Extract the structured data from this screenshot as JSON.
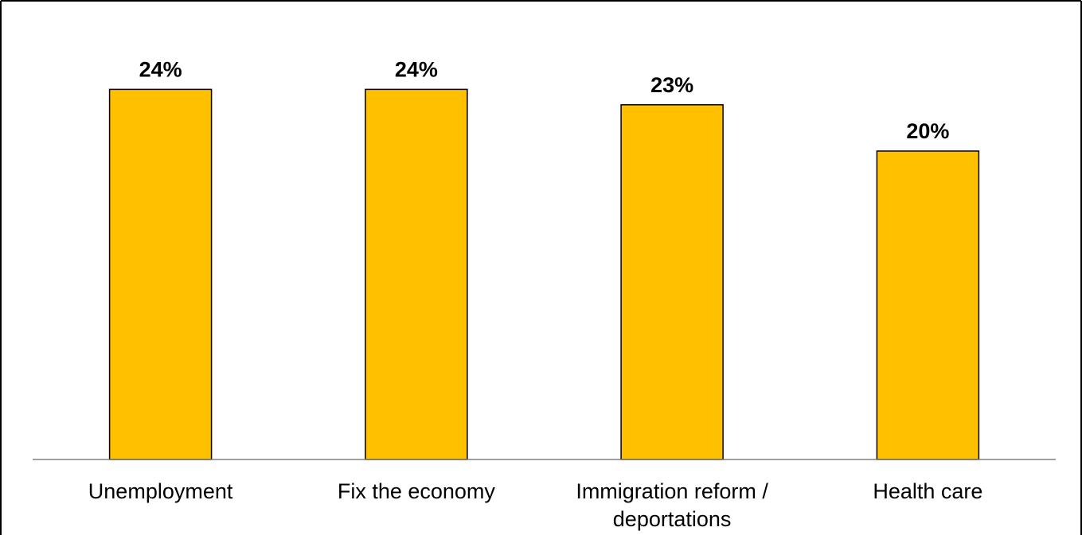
{
  "chart_data": {
    "type": "bar",
    "categories": [
      "Unemployment",
      "Fix the economy",
      "Immigration reform / deportations",
      "Health care"
    ],
    "category_lines": [
      [
        "Unemployment"
      ],
      [
        "Fix the economy"
      ],
      [
        "Immigration reform /",
        "deportations"
      ],
      [
        "Health care"
      ]
    ],
    "values": [
      24,
      24,
      23,
      20
    ],
    "data_labels": [
      "24%",
      "24%",
      "23%",
      "20%"
    ],
    "ylim": [
      0,
      25.5
    ],
    "grid": false,
    "legend": "none",
    "title": "",
    "xlabel": "",
    "ylabel": ""
  },
  "colors": {
    "bar_fill": "#FFC000",
    "bar_stroke": "#000000",
    "axis": "#808080",
    "frame": "#000000"
  }
}
